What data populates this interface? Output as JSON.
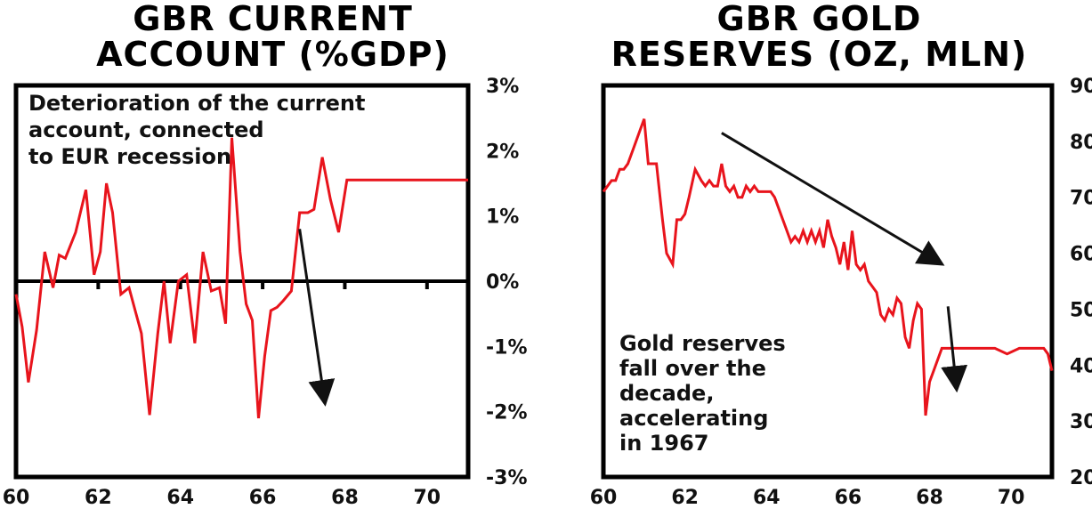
{
  "chart_data": [
    {
      "type": "line",
      "title_lines": [
        "GBR CURRENT",
        "ACCOUNT (%GDP)"
      ],
      "x_ticks": [
        "60",
        "62",
        "64",
        "66",
        "68",
        "70"
      ],
      "x_tick_values": [
        60,
        62,
        64,
        66,
        68,
        70
      ],
      "y_ticks": [
        "3%",
        "2%",
        "1%",
        "0%",
        "-1%",
        "-2%",
        "-3%"
      ],
      "y_tick_values": [
        3,
        2,
        1,
        0,
        -1,
        -2,
        -3
      ],
      "xlim": [
        60,
        71
      ],
      "ylim": [
        -3,
        3
      ],
      "annotation_lines": [
        "Deterioration of the current",
        "account, connected",
        "to EUR recession"
      ],
      "arrow": {
        "from": [
          66.9,
          0.8
        ],
        "to": [
          67.5,
          -1.8
        ]
      },
      "series": [
        {
          "name": "GBR current account",
          "color": "#e8141c",
          "x": [
            60.0,
            60.15,
            60.3,
            60.5,
            60.7,
            60.9,
            61.05,
            61.2,
            61.45,
            61.7,
            61.9,
            62.05,
            62.2,
            62.35,
            62.55,
            62.75,
            62.9,
            63.05,
            63.25,
            63.45,
            63.6,
            63.75,
            63.95,
            64.15,
            64.35,
            64.55,
            64.75,
            64.95,
            65.1,
            65.25,
            65.45,
            65.6,
            65.75,
            65.9,
            66.05,
            66.2,
            66.35,
            66.5,
            66.7,
            66.9,
            67.1,
            67.25,
            67.45,
            67.65,
            67.85,
            68.05,
            68.25,
            68.45,
            68.65,
            68.85,
            69.05,
            69.25,
            69.45,
            69.65,
            69.85,
            70.05,
            70.25,
            70.45,
            70.65,
            70.85,
            71.0
          ],
          "values": [
            -0.2,
            -0.7,
            -1.55,
            -0.75,
            0.45,
            -0.1,
            0.4,
            0.35,
            0.75,
            1.4,
            0.1,
            0.45,
            1.5,
            1.05,
            -0.2,
            -0.1,
            -0.45,
            -0.8,
            -2.05,
            -0.8,
            0.0,
            -0.95,
            0.0,
            0.1,
            -0.95,
            0.45,
            -0.15,
            -0.1,
            -0.65,
            2.2,
            0.45,
            -0.35,
            -0.6,
            -2.1,
            -1.15,
            -0.45,
            -0.4,
            -0.3,
            -0.15,
            1.05,
            1.05,
            1.1,
            1.9,
            1.25,
            0.75,
            1.55,
            1.55,
            1.55,
            1.55,
            1.55,
            1.55,
            1.55,
            1.55,
            1.55,
            1.55,
            1.55,
            1.55,
            1.55,
            1.55,
            1.55,
            1.55
          ]
        }
      ]
    },
    {
      "type": "line",
      "title_lines": [
        "GBR GOLD",
        "RESERVES (OZ, MLN)"
      ],
      "x_ticks": [
        "60",
        "62",
        "64",
        "66",
        "68",
        "70"
      ],
      "x_tick_values": [
        60,
        62,
        64,
        66,
        68,
        70
      ],
      "y_ticks": [
        "90",
        "80",
        "70",
        "60",
        "50",
        "40",
        "30",
        "20"
      ],
      "y_tick_values": [
        90,
        80,
        70,
        60,
        50,
        40,
        30,
        20
      ],
      "xlim": [
        60,
        71
      ],
      "ylim": [
        20,
        90
      ],
      "annotation_lines": [
        "Gold reserves",
        "fall over the",
        "decade,",
        "accelerating",
        "in 1967"
      ],
      "arrows": [
        {
          "from": [
            62.9,
            81.5
          ],
          "to": [
            68.2,
            58.5
          ]
        },
        {
          "from": [
            68.45,
            50.5
          ],
          "to": [
            68.65,
            36.5
          ]
        }
      ],
      "series": [
        {
          "name": "GBR gold reserves",
          "color": "#e8141c",
          "x": [
            60.0,
            60.1,
            60.2,
            60.3,
            60.4,
            60.5,
            60.6,
            60.75,
            60.9,
            61.0,
            61.1,
            61.2,
            61.3,
            61.45,
            61.55,
            61.7,
            61.8,
            61.9,
            62.0,
            62.1,
            62.25,
            62.4,
            62.5,
            62.6,
            62.7,
            62.8,
            62.9,
            63.0,
            63.1,
            63.2,
            63.3,
            63.4,
            63.5,
            63.6,
            63.7,
            63.8,
            63.9,
            64.0,
            64.1,
            64.2,
            64.3,
            64.45,
            64.6,
            64.7,
            64.8,
            64.9,
            65.0,
            65.1,
            65.2,
            65.3,
            65.4,
            65.5,
            65.6,
            65.7,
            65.8,
            65.9,
            66.0,
            66.1,
            66.2,
            66.3,
            66.4,
            66.5,
            66.6,
            66.7,
            66.8,
            66.9,
            67.0,
            67.1,
            67.2,
            67.3,
            67.4,
            67.5,
            67.6,
            67.7,
            67.8,
            67.9,
            68.0,
            68.1,
            68.2,
            68.3,
            68.4,
            68.5,
            68.7,
            69.0,
            69.3,
            69.6,
            69.9,
            70.2,
            70.5,
            70.8,
            70.9,
            71.0
          ],
          "values": [
            71,
            72,
            73,
            73,
            75,
            75,
            76,
            79,
            82,
            84,
            76,
            76,
            76,
            66,
            60,
            58,
            66,
            66,
            67,
            70,
            75,
            73,
            72,
            73,
            72,
            72,
            76,
            72,
            71,
            72,
            70,
            70,
            72,
            71,
            72,
            71,
            71,
            71,
            71,
            70,
            68,
            65,
            62,
            63,
            62,
            64,
            62,
            64,
            62,
            64,
            61,
            66,
            63,
            61,
            58,
            62,
            57,
            64,
            58,
            57,
            58,
            55,
            54,
            53,
            49,
            48,
            50,
            49,
            52,
            51,
            45,
            43,
            48,
            51,
            50,
            31,
            37,
            39,
            41,
            43,
            43,
            43,
            43,
            43,
            43,
            43,
            42,
            43,
            43,
            43,
            42,
            39
          ]
        }
      ]
    }
  ]
}
